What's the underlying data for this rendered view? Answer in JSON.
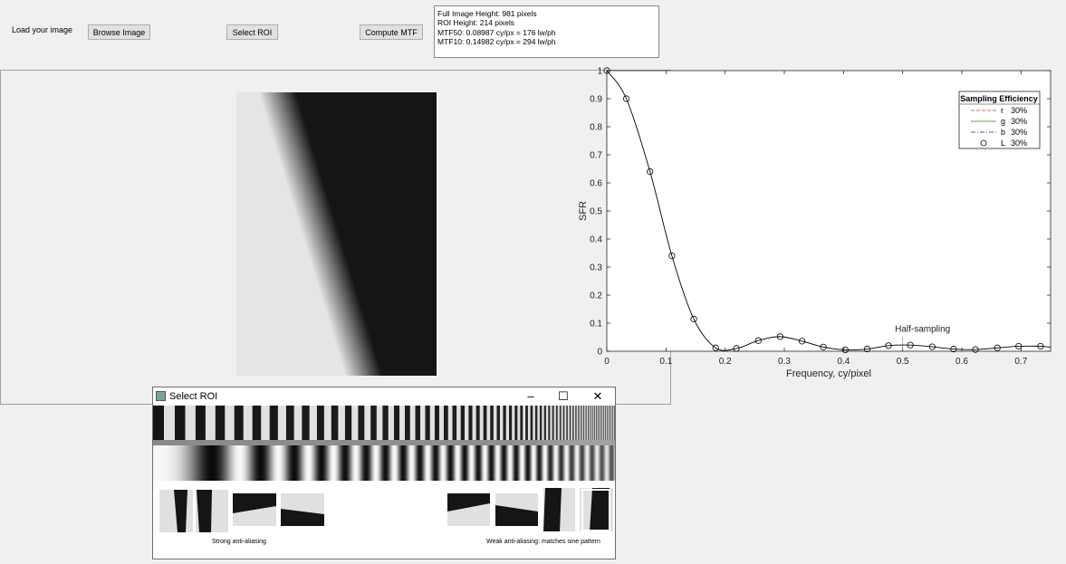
{
  "toolbar": {
    "load_label": "Load your image",
    "browse_label": "Browse Image",
    "roi_label": "Select ROI",
    "compute_label": "Compute MTF"
  },
  "info": {
    "lines": [
      "Full Image Height: 981 pixels",
      "ROI Height: 214 pixels",
      "MTF50: 0.08987 cy/px = 176 lw/ph",
      "MTF10: 0.14982 cy/px = 294 lw/ph"
    ]
  },
  "chart_data": {
    "type": "line",
    "xlabel": "Frequency, cy/pixel",
    "ylabel": "SFR",
    "xlim": [
      0,
      0.75
    ],
    "ylim": [
      0,
      1
    ],
    "xticks": [
      "0",
      "0.1",
      "0.2",
      "0.3",
      "0.4",
      "0.5",
      "0.6",
      "0.7"
    ],
    "yticks": [
      "0",
      "0.1",
      "0.2",
      "0.3",
      "0.4",
      "0.5",
      "0.6",
      "0.7",
      "0.8",
      "0.9",
      "1"
    ],
    "x": [
      0,
      0.033,
      0.073,
      0.11,
      0.147,
      0.184,
      0.219,
      0.256,
      0.293,
      0.33,
      0.366,
      0.403,
      0.44,
      0.476,
      0.513,
      0.55,
      0.586,
      0.623,
      0.66,
      0.696,
      0.733
    ],
    "series": [
      {
        "name": "L",
        "values": [
          1.0,
          0.9,
          0.64,
          0.34,
          0.115,
          0.012,
          0.01,
          0.038,
          0.052,
          0.036,
          0.015,
          0.005,
          0.008,
          0.02,
          0.022,
          0.016,
          0.008,
          0.006,
          0.012,
          0.018,
          0.018
        ]
      }
    ],
    "annotation": {
      "text": "Half-sampling",
      "x": 0.5
    },
    "legend": {
      "title": "Sampling Efficiency",
      "position": "top-right",
      "entries": [
        {
          "name": "r",
          "value": "30%",
          "color": "#e06060",
          "style": "dash"
        },
        {
          "name": "g",
          "value": "30%",
          "color": "#4caf50",
          "style": "solid"
        },
        {
          "name": "b",
          "value": "30%",
          "color": "#5050c0",
          "style": "dashdot"
        },
        {
          "name": "L",
          "value": "30%",
          "color": "#000000",
          "style": "circle"
        }
      ]
    },
    "grid": false
  },
  "roi_window": {
    "title": "Select ROI",
    "caption_left": "Strong anti-aliasing",
    "caption_right": "Weak anti-aliasing: matches sine pattern"
  }
}
